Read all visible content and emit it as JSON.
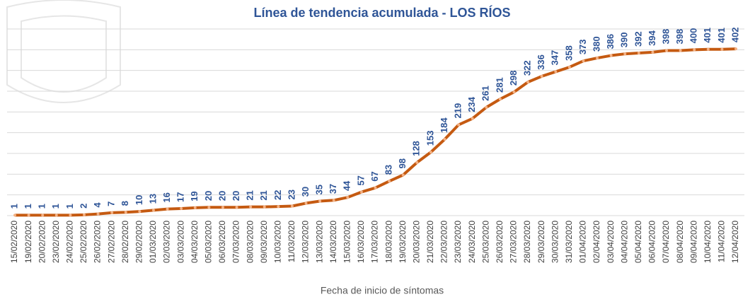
{
  "chart_data": {
    "type": "line",
    "title": "Línea de tendencia acumulada - LOS RÍOS",
    "x_label": "Fecha de inicio de síntomas",
    "categories": [
      "15/02/2020",
      "19/02/2020",
      "20/02/2020",
      "23/02/2020",
      "24/02/2020",
      "25/02/2020",
      "26/02/2020",
      "27/02/2020",
      "28/02/2020",
      "29/02/2020",
      "01/03/2020",
      "02/03/2020",
      "03/03/2020",
      "04/03/2020",
      "05/03/2020",
      "06/03/2020",
      "07/03/2020",
      "08/03/2020",
      "09/03/2020",
      "10/03/2020",
      "11/03/2020",
      "12/03/2020",
      "13/03/2020",
      "14/03/2020",
      "15/03/2020",
      "16/03/2020",
      "17/03/2020",
      "18/03/2020",
      "19/03/2020",
      "20/03/2020",
      "21/03/2020",
      "22/03/2020",
      "23/03/2020",
      "24/03/2020",
      "25/03/2020",
      "26/03/2020",
      "27/03/2020",
      "28/03/2020",
      "29/03/2020",
      "30/03/2020",
      "31/03/2020",
      "01/04/2020",
      "02/04/2020",
      "03/04/2020",
      "04/04/2020",
      "05/04/2020",
      "06/04/2020",
      "07/04/2020",
      "08/04/2020",
      "09/04/2020",
      "10/04/2020",
      "11/04/2020",
      "12/04/2020"
    ],
    "values": [
      1,
      1,
      1,
      1,
      1,
      2,
      4,
      7,
      8,
      10,
      13,
      16,
      17,
      19,
      20,
      20,
      20,
      21,
      21,
      22,
      23,
      30,
      35,
      37,
      44,
      57,
      67,
      83,
      98,
      128,
      153,
      184,
      219,
      234,
      261,
      281,
      298,
      322,
      336,
      347,
      358,
      373,
      380,
      386,
      390,
      392,
      394,
      398,
      398,
      400,
      401,
      401,
      402
    ],
    "color": "#c55a11",
    "marker_color": "#f4b183",
    "label_color": "#2f5597",
    "ylim": [
      0,
      450
    ],
    "yticks": [
      0,
      50,
      100,
      150,
      200,
      250,
      300,
      350,
      400,
      450
    ],
    "grid": true
  }
}
